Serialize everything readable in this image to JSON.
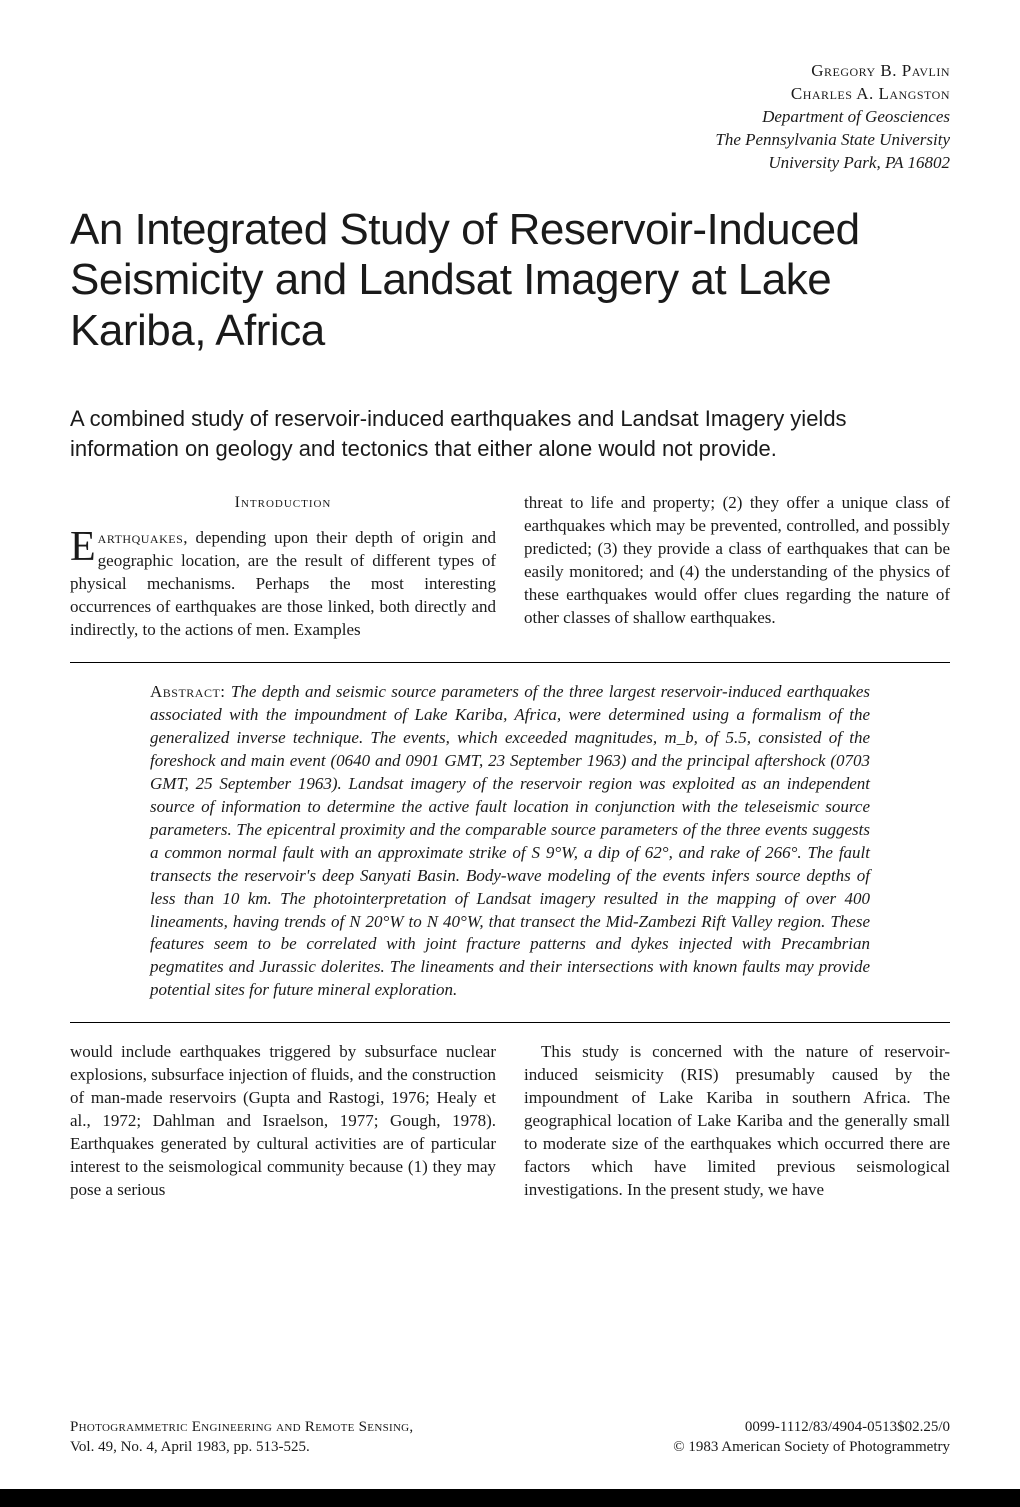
{
  "authors": {
    "name1": "Gregory B. Pavlin",
    "name2": "Charles A. Langston",
    "dept": "Department of Geosciences",
    "univ": "The Pennsylvania State University",
    "addr": "University Park, PA 16802"
  },
  "title": "An Integrated Study of Reservoir-Induced Seismicity and Landsat Imagery at Lake Kariba, Africa",
  "subtitle": "A combined study of reservoir-induced earthquakes and Landsat Imagery yields information on geology and tectonics that either alone would not provide.",
  "intro_heading": "Introduction",
  "intro_col1": {
    "dropcap": "E",
    "lead": "arthquakes",
    "rest": ", depending upon their depth of origin and geographic location, are the result of different types of physical mechanisms. Perhaps the most interesting occurrences of earthquakes are those linked, both directly and indirectly, to the actions of men. Examples"
  },
  "intro_col2": "threat to life and property; (2) they offer a unique class of earthquakes which may be prevented, controlled, and possibly predicted; (3) they provide a class of earthquakes that can be easily monitored; and (4) the understanding of the physics of these earthquakes would offer clues regarding the nature of other classes of shallow earthquakes.",
  "abstract": {
    "label": "Abstract:",
    "text": " The depth and seismic source parameters of the three largest reservoir-induced earthquakes associated with the impoundment of Lake Kariba, Africa, were determined using a formalism of the generalized inverse technique. The events, which exceeded magnitudes, m_b, of 5.5, consisted of the foreshock and main event (0640 and 0901 GMT, 23 September 1963) and the principal aftershock (0703 GMT, 25 September 1963). Landsat imagery of the reservoir region was exploited as an independent source of information to determine the active fault location in conjunction with the teleseismic source parameters. The epicentral proximity and the comparable source parameters of the three events suggests a common normal fault with an approximate strike of S 9°W, a dip of 62°, and rake of 266°. The fault transects the reservoir's deep Sanyati Basin. Body-wave modeling of the events infers source depths of less than 10 km. The photointerpretation of Landsat imagery resulted in the mapping of over 400 lineaments, having trends of N 20°W to N 40°W, that transect the Mid-Zambezi Rift Valley region. These features seem to be correlated with joint fracture patterns and dykes injected with Precambrian pegmatites and Jurassic dolerites. The lineaments and their intersections with known faults may provide potential sites for future mineral exploration."
  },
  "body_col1": "would include earthquakes triggered by subsurface nuclear explosions, subsurface injection of fluids, and the construction of man-made reservoirs (Gupta and Rastogi, 1976; Healy et al., 1972; Dahlman and Israelson, 1977; Gough, 1978). Earthquakes generated by cultural activities are of particular interest to the seismological community because (1) they may pose a serious",
  "body_col2": "This study is concerned with the nature of reservoir-induced seismicity (RIS) presumably caused by the impoundment of Lake Kariba in southern Africa. The geographical location of Lake Kariba and the generally small to moderate size of the earthquakes which occurred there are factors which have limited previous seismological investigations. In the present study, we have",
  "footer": {
    "journal": "Photogrammetric Engineering and Remote Sensing,",
    "issue": "Vol. 49, No. 4, April 1983, pp. 513-525.",
    "code": "0099-1112/83/4904-0513$02.25/0",
    "copyright": "© 1983 American Society of Photogrammetry"
  }
}
